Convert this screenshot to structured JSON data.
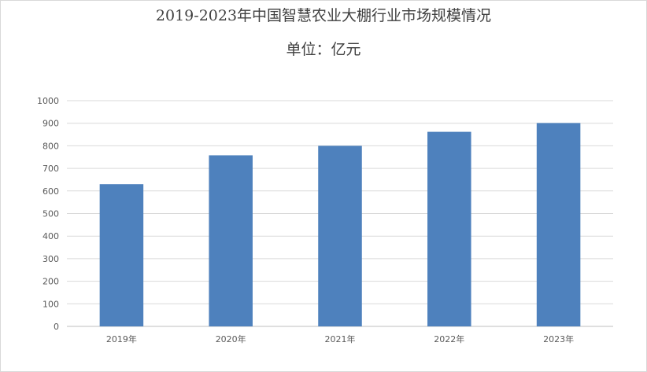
{
  "chart_data": {
    "type": "bar",
    "title": "2019-2023年中国智慧农业大棚行业市场规模情况",
    "subtitle": "单位：亿元",
    "categories": [
      "2019年",
      "2020年",
      "2021年",
      "2022年",
      "2023年"
    ],
    "series": [
      {
        "values": [
          630,
          758,
          800,
          862,
          901
        ]
      }
    ],
    "ylim": [
      0,
      1000
    ],
    "yticks": [
      0,
      100,
      200,
      300,
      400,
      500,
      600,
      700,
      800,
      900,
      1000
    ],
    "grid": true,
    "bar_color": "#4e81bd",
    "grid_color": "#d9d9d9",
    "axis_color": "#bfbfbf"
  }
}
